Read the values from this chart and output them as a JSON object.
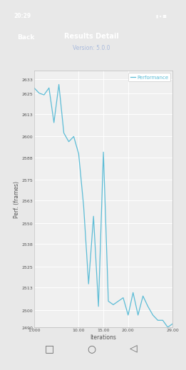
{
  "title": "Results Detail",
  "subtitle": "Version: 5.0.0",
  "xlabel": "Iterations",
  "ylabel": "Perf. (frames)",
  "legend_label": "Performance",
  "legend_color": "#5bbcd6",
  "line_color": "#5bbcd6",
  "header_color": "#2c3e6b",
  "background_color": "#e8e8e8",
  "plot_bg_color": "#f0f0f0",
  "nav_bar_color": "#f0f0f0",
  "status_bar_color": "#1a2a5a",
  "ylim": [
    2490,
    2638
  ],
  "xlim": [
    1,
    29
  ],
  "yticks": [
    2490,
    2500,
    2513,
    2525,
    2538,
    2550,
    2563,
    2575,
    2588,
    2600,
    2613,
    2625,
    2633
  ],
  "xticks": [
    1.0,
    10.0,
    15.0,
    20.0,
    29.0
  ],
  "xtick_labels": [
    "1.000",
    "10.00",
    "15.00",
    "20.00",
    "29.00"
  ],
  "x": [
    1,
    2,
    3,
    4,
    5,
    6,
    7,
    8,
    9,
    10,
    11,
    12,
    13,
    14,
    15,
    16,
    17,
    18,
    19,
    20,
    21,
    22,
    23,
    24,
    25,
    26,
    27,
    28,
    29
  ],
  "y": [
    2628,
    2625,
    2624,
    2628,
    2608,
    2630,
    2602,
    2597,
    2600,
    2590,
    2560,
    2515,
    2554,
    2502,
    2591,
    2505,
    2503,
    2505,
    2507,
    2497,
    2510,
    2497,
    2508,
    2502,
    2497,
    2494,
    2494,
    2490,
    2492
  ]
}
